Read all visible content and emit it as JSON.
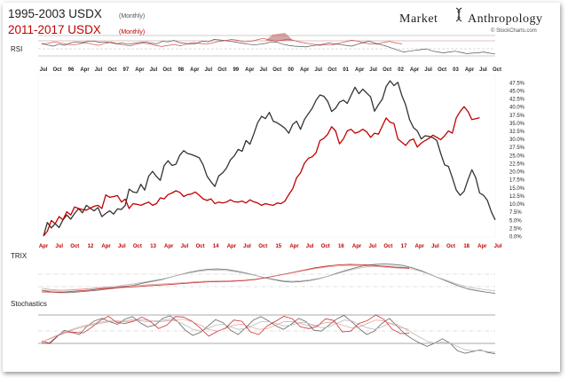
{
  "header": {
    "title_1": "1995-2003 USDX",
    "title_1_sub": "(Monthly)",
    "title_2": "2011-2017 USDX",
    "title_2_sub": "(Monthly)",
    "brand_left": "Market",
    "brand_right": "Anthropology",
    "credit": "© StockCharts.com"
  },
  "colors": {
    "series_1995": "#333333",
    "series_2011": "#c00000",
    "panel_grid": "#999999"
  },
  "panels": {
    "rsi_label": "RSI",
    "trix_label": "TRIX",
    "stoch_label": "Stochastics"
  },
  "chart_data": [
    {
      "type": "line",
      "panel": "price",
      "top_axis_labels": [
        "Jul",
        "Oct",
        "96",
        "Apr",
        "Jul",
        "Oct",
        "97",
        "Apr",
        "Jul",
        "Oct",
        "98",
        "Apr",
        "Jul",
        "Oct",
        "99",
        "Apr",
        "Jul",
        "Oct",
        "00",
        "Apr",
        "Jul",
        "Oct",
        "01",
        "Apr",
        "Jul",
        "Oct",
        "02",
        "Apr",
        "Jul",
        "Oct",
        "03",
        "Apr",
        "Jul",
        "Oct"
      ],
      "bottom_axis_labels": [
        "Apr",
        "Jul",
        "Oct",
        "12",
        "Apr",
        "Jul",
        "Oct",
        "13",
        "Apr",
        "Jul",
        "Oct",
        "14",
        "Apr",
        "Jul",
        "Oct",
        "15",
        "Apr",
        "Jul",
        "Oct",
        "16",
        "Apr",
        "Jul",
        "Oct",
        "17",
        "Apr",
        "Jul",
        "Oct",
        "18",
        "Apr",
        "Jul"
      ],
      "y_ticks": [
        "47.5%",
        "45.0%",
        "42.5%",
        "40.0%",
        "37.5%",
        "35.0%",
        "32.5%",
        "30.0%",
        "27.5%",
        "25.0%",
        "22.5%",
        "20.0%",
        "17.5%",
        "15.0%",
        "12.5%",
        "10.0%",
        "7.5%",
        "5.0%",
        "2.5%",
        "0.0%"
      ],
      "ylim": [
        0,
        48
      ],
      "series": [
        {
          "values": [
            0,
            4.2,
            2.5,
            3.8,
            2.6,
            5.0,
            6.5,
            5.2,
            7.0,
            8.5,
            7.2,
            9.5,
            8.6,
            7.8,
            8.8,
            6.0,
            7.0,
            7.8,
            6.8,
            8.4,
            8.2,
            9.5,
            14.5,
            13.6,
            13.4,
            16.0,
            14.2,
            18.5,
            20.0,
            18.4,
            17.2,
            21.8,
            23.3,
            21.8,
            22.2,
            25.0,
            26.4,
            25.5,
            25.2,
            24.7,
            24.2,
            22.0,
            18.5,
            16.8,
            15.3,
            18.6,
            19.5,
            21.0,
            23.5,
            24.8,
            26.8,
            26.2,
            29.5,
            28.4,
            31.5,
            35.0,
            37.0,
            36.3,
            38.2,
            35.5,
            35.0,
            34.2,
            33.3,
            31.8,
            34.5,
            35.5,
            33.0,
            36.0,
            37.8,
            39.5,
            42.0,
            43.6,
            43.2,
            41.6,
            38.5,
            39.5,
            41.4,
            42.0,
            41.0,
            43.5,
            46.0,
            44.0,
            45.4,
            44.2,
            43.0,
            38.6,
            40.6,
            42.3,
            46.2,
            48.0,
            46.5,
            47.5,
            43.5,
            40.5,
            36.0,
            33.5,
            32.5,
            30.0,
            31.0,
            30.8,
            30.4,
            29.5,
            25.5,
            22.0,
            21.5,
            18.0,
            14.2,
            12.6,
            13.8,
            17.4,
            20.5,
            18.0,
            13.3,
            12.6,
            11.0,
            7.5,
            5.0
          ]
        },
        {
          "values": [
            0,
            1.5,
            4.8,
            3.8,
            6.0,
            5.0,
            7.5,
            6.5,
            9.0,
            8.5,
            8.2,
            8.0,
            8.6,
            9.2,
            9.5,
            8.5,
            12.7,
            12.0,
            12.2,
            12.5,
            10.5,
            11.4,
            8.5,
            10.0,
            9.8,
            9.5,
            10.0,
            10.5,
            9.5,
            10.0,
            11.8,
            11.5,
            12.8,
            13.3,
            14.0,
            13.5,
            12.2,
            12.8,
            13.0,
            13.6,
            12.6,
            11.5,
            11.0,
            11.5,
            10.0,
            10.5,
            10.2,
            10.5,
            11.2,
            10.6,
            10.5,
            10.8,
            10.2,
            11.2,
            10.6,
            10.2,
            9.5,
            10.0,
            9.7,
            9.5,
            10.2,
            10.0,
            10.8,
            12.8,
            14.6,
            18.0,
            19.5,
            22.5,
            24.0,
            24.5,
            25.8,
            29.5,
            30.2,
            31.5,
            33.8,
            32.5,
            28.5,
            30.0,
            32.5,
            33.0,
            31.8,
            32.2,
            33.0,
            32.2,
            30.5,
            31.8,
            31.5,
            34.0,
            36.5,
            35.2,
            34.8,
            30.0,
            29.0,
            28.0,
            29.5,
            30.0,
            27.5,
            28.7,
            29.5,
            30.2,
            31.2,
            30.5,
            29.8,
            31.0,
            32.5,
            31.8,
            36.5,
            38.5,
            40.0,
            38.5,
            36.0,
            36.3,
            36.6
          ]
        }
      ]
    },
    {
      "type": "line",
      "panel": "rsi",
      "series": [
        {
          "values": [
            62,
            58,
            55,
            60,
            57,
            63,
            66,
            64,
            67,
            68,
            65,
            66,
            64,
            61,
            63,
            60,
            62,
            64,
            66,
            63,
            61,
            67,
            66,
            70,
            64,
            62,
            60,
            62,
            68,
            66,
            72,
            71,
            69,
            67,
            65,
            62,
            60,
            58,
            60,
            62,
            66,
            65,
            60,
            57,
            55,
            54,
            53,
            56,
            58,
            60,
            63,
            61,
            59,
            57,
            55,
            60,
            64,
            68,
            63,
            59,
            55,
            50,
            45,
            40,
            42,
            44,
            46,
            48,
            43,
            40,
            38,
            40,
            42,
            39,
            36,
            37,
            38,
            40,
            37,
            35
          ]
        },
        {
          "values": [
            60,
            62,
            66,
            63,
            60,
            58,
            61,
            64,
            60,
            57,
            62,
            65,
            61,
            58,
            56,
            60,
            63,
            61,
            57,
            54,
            57,
            59,
            56,
            61,
            64,
            62,
            60,
            63,
            67,
            69,
            72,
            70,
            66,
            67,
            71,
            75,
            71,
            68,
            70,
            73,
            69,
            65,
            62,
            60,
            57,
            59,
            58,
            62,
            66,
            70,
            68,
            63,
            61,
            60,
            64,
            67,
            63,
            61
          ]
        }
      ]
    },
    {
      "type": "line",
      "panel": "trix",
      "series": [
        {
          "values": [
            -0.6,
            -0.7,
            -0.75,
            -0.75,
            -0.7,
            -0.65,
            -0.6,
            -0.52,
            -0.45,
            -0.35,
            -0.25,
            -0.12,
            0.0,
            0.12,
            0.28,
            0.45,
            0.6,
            0.72,
            0.8,
            0.82,
            0.78,
            0.68,
            0.55,
            0.4,
            0.25,
            0.12,
            0.0,
            -0.05,
            -0.02,
            0.05,
            0.18,
            0.35,
            0.55,
            0.75,
            0.92,
            1.05,
            1.12,
            1.15,
            1.12,
            1.05,
            0.9,
            0.7,
            0.45,
            0.2,
            -0.05,
            -0.3,
            -0.5,
            -0.62,
            -0.72,
            -0.8
          ]
        },
        {
          "values": [
            -0.7,
            -0.72,
            -0.7,
            -0.64,
            -0.58,
            -0.5,
            -0.44,
            -0.4,
            -0.36,
            -0.3,
            -0.25,
            -0.2,
            -0.14,
            -0.08,
            -0.04,
            -0.02,
            0.0,
            0.04,
            0.12,
            0.25,
            0.4,
            0.55,
            0.72,
            0.88,
            1.0,
            1.08,
            1.12,
            1.1,
            1.05,
            0.98,
            0.92,
            0.88
          ]
        }
      ]
    },
    {
      "type": "line",
      "panel": "stochastics",
      "series": [
        {
          "values": [
            35,
            30,
            45,
            60,
            55,
            50,
            70,
            82,
            88,
            80,
            74,
            86,
            92,
            78,
            68,
            72,
            88,
            94,
            80,
            60,
            48,
            55,
            70,
            85,
            78,
            60,
            50,
            66,
            84,
            92,
            82,
            70,
            62,
            74,
            88,
            80,
            60,
            58,
            72,
            86,
            95,
            80,
            64,
            50,
            58,
            76,
            88,
            70,
            52,
            40,
            30,
            22,
            30,
            40,
            30,
            12,
            6,
            10,
            14,
            8,
            5
          ]
        },
        {
          "values": [
            32,
            40,
            48,
            56,
            62,
            68,
            72,
            76,
            80,
            82,
            80,
            82,
            85,
            82,
            80,
            82,
            84,
            86,
            80,
            72,
            62,
            58,
            64,
            72,
            74,
            68,
            62,
            64,
            72,
            80,
            80,
            76,
            70,
            72,
            78,
            78,
            72,
            66,
            68,
            76,
            84,
            82,
            74,
            66,
            62,
            68,
            76,
            74,
            64,
            54,
            44,
            34,
            30,
            32,
            30,
            22,
            14,
            12,
            12,
            10,
            8
          ]
        }
      ]
    }
  ]
}
